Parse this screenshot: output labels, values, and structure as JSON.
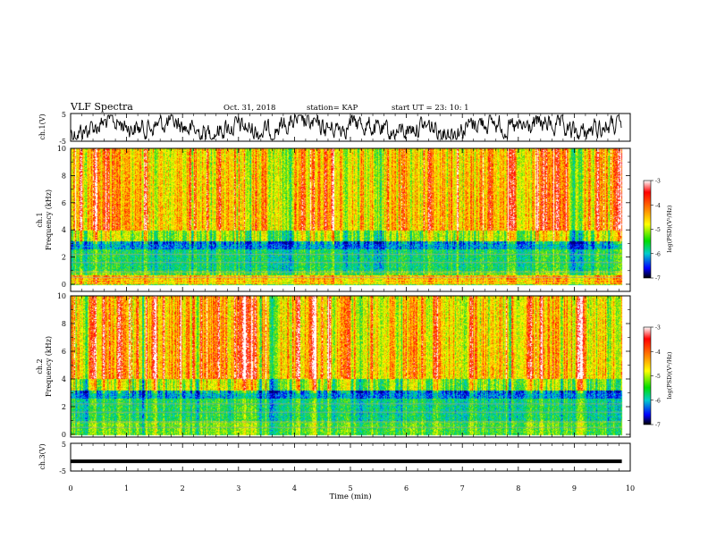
{
  "header": {
    "title": "VLF Spectra",
    "date": "Oct. 31, 2018",
    "station": "station= KAP",
    "start": "start  UT  =   23: 10: 1"
  },
  "chart_data": [
    {
      "type": "line",
      "name": "ch1-waveform",
      "ylabel": "ch.1(V)",
      "ylim": [
        -5,
        5
      ],
      "yticks": [
        "5",
        "-5"
      ],
      "xlim": [
        0,
        10
      ]
    },
    {
      "type": "heatmap",
      "name": "ch1-spectrogram",
      "ylabel": "ch.1\nFrequency (kHz)",
      "ylabel_top": "ch.1",
      "ylabel_bottom": "Frequency (kHz)",
      "ylim": [
        0,
        10
      ],
      "yticks": [
        "0",
        "2",
        "4",
        "6",
        "8",
        "10"
      ],
      "colorbar": {
        "label": "log(PSD)(V²/Hz)",
        "ticks": [
          "-3",
          "-4",
          "-5",
          "-6",
          "-7"
        ],
        "range": [
          -7,
          -3
        ]
      }
    },
    {
      "type": "heatmap",
      "name": "ch2-spectrogram",
      "ylabel_top": "ch.2",
      "ylabel_bottom": "Frequency (kHz)",
      "ylim": [
        0,
        10
      ],
      "yticks": [
        "0",
        "2",
        "4",
        "6",
        "8",
        "10"
      ],
      "colorbar": {
        "label": "log(PSD)(V²/Hz)",
        "ticks": [
          "-3",
          "-4",
          "-5",
          "-6",
          "-7"
        ],
        "range": [
          -7,
          -3
        ]
      }
    },
    {
      "type": "line",
      "name": "ch3-waveform",
      "ylabel": "ch.3(V)",
      "ylim": [
        -5,
        5
      ],
      "yticks": [
        "5",
        "-5"
      ],
      "x": [
        0,
        9.85
      ],
      "y": [
        -1.5,
        -1.5
      ]
    }
  ],
  "xaxis": {
    "label": "Time (min)",
    "ticks": [
      "0",
      "1",
      "2",
      "3",
      "4",
      "5",
      "6",
      "7",
      "8",
      "9",
      "10"
    ],
    "xlim": [
      0,
      10
    ],
    "data_end": 9.85
  },
  "colors": {
    "spectrum_high": "#ff0000",
    "spectrum_mid": "#ffff00",
    "spectrum_low": "#00cc66",
    "spectrum_min": "#0000cc"
  }
}
